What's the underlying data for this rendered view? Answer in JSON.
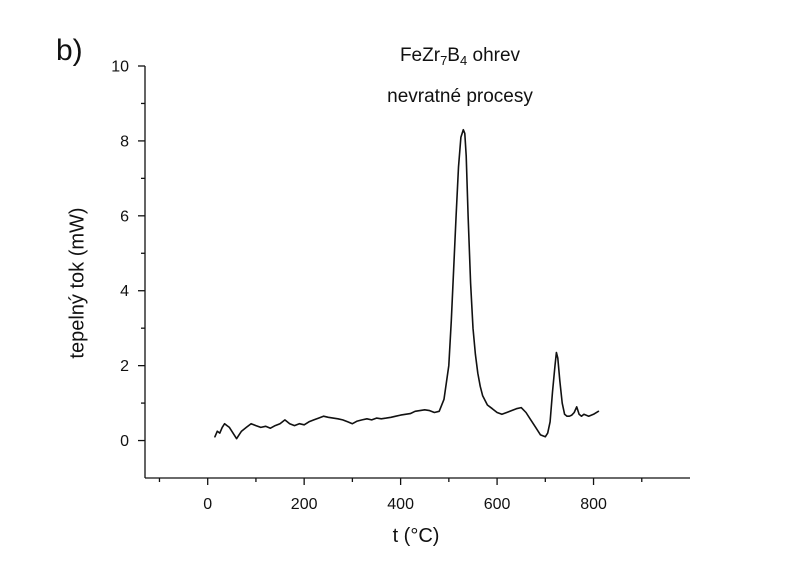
{
  "panel_label": "b)",
  "title": {
    "line1": {
      "base": "FeZr",
      "sub1": "7",
      "mid": "B",
      "sub2": "4",
      "tail": " ohrev"
    },
    "line2": "nevratné procesy"
  },
  "chart_data": {
    "type": "line",
    "title": "FeZr7B4 ohrev nevratné procesy",
    "xlabel": "t (°C)",
    "ylabel": "tepelný tok (mW)",
    "xlim": [
      -130,
      1000
    ],
    "ylim": [
      -1,
      10
    ],
    "xticks": [
      0,
      200,
      400,
      600,
      800
    ],
    "yticks": [
      0,
      2,
      4,
      6,
      8,
      10
    ],
    "grid": false,
    "line_color": "#111111",
    "series": [
      {
        "x": [
          15,
          20,
          25,
          30,
          35,
          40,
          45,
          50,
          55,
          60,
          65,
          70,
          80,
          90,
          100,
          110,
          120,
          130,
          140,
          150,
          160,
          170,
          180,
          190,
          200,
          210,
          220,
          230,
          240,
          250,
          260,
          270,
          280,
          290,
          300,
          310,
          320,
          330,
          340,
          350,
          360,
          370,
          380,
          390,
          400,
          410,
          420,
          430,
          440,
          450,
          460,
          470,
          480,
          490,
          500,
          505,
          510,
          515,
          520,
          525,
          530,
          533,
          536,
          540,
          545,
          550,
          555,
          560,
          565,
          570,
          580,
          590,
          600,
          610,
          620,
          630,
          640,
          650,
          660,
          670,
          680,
          690,
          700,
          705,
          710,
          715,
          720,
          723,
          726,
          730,
          735,
          740,
          745,
          750,
          755,
          760,
          765,
          770,
          775,
          780,
          790,
          800,
          810
        ],
        "y": [
          0.1,
          0.25,
          0.2,
          0.35,
          0.45,
          0.4,
          0.35,
          0.25,
          0.15,
          0.05,
          0.15,
          0.25,
          0.35,
          0.45,
          0.4,
          0.35,
          0.38,
          0.33,
          0.4,
          0.45,
          0.55,
          0.45,
          0.4,
          0.45,
          0.42,
          0.5,
          0.55,
          0.6,
          0.65,
          0.62,
          0.6,
          0.58,
          0.55,
          0.5,
          0.45,
          0.52,
          0.55,
          0.58,
          0.55,
          0.6,
          0.58,
          0.6,
          0.62,
          0.65,
          0.68,
          0.7,
          0.72,
          0.78,
          0.8,
          0.82,
          0.8,
          0.75,
          0.78,
          1.1,
          2.0,
          3.2,
          4.6,
          6.0,
          7.3,
          8.1,
          8.3,
          8.2,
          7.6,
          6.0,
          4.2,
          3.0,
          2.3,
          1.8,
          1.45,
          1.2,
          0.95,
          0.85,
          0.75,
          0.7,
          0.75,
          0.8,
          0.85,
          0.88,
          0.75,
          0.55,
          0.35,
          0.15,
          0.1,
          0.2,
          0.5,
          1.3,
          2.0,
          2.35,
          2.2,
          1.6,
          1.0,
          0.7,
          0.65,
          0.65,
          0.68,
          0.75,
          0.9,
          0.7,
          0.65,
          0.7,
          0.65,
          0.7,
          0.78
        ]
      }
    ]
  }
}
